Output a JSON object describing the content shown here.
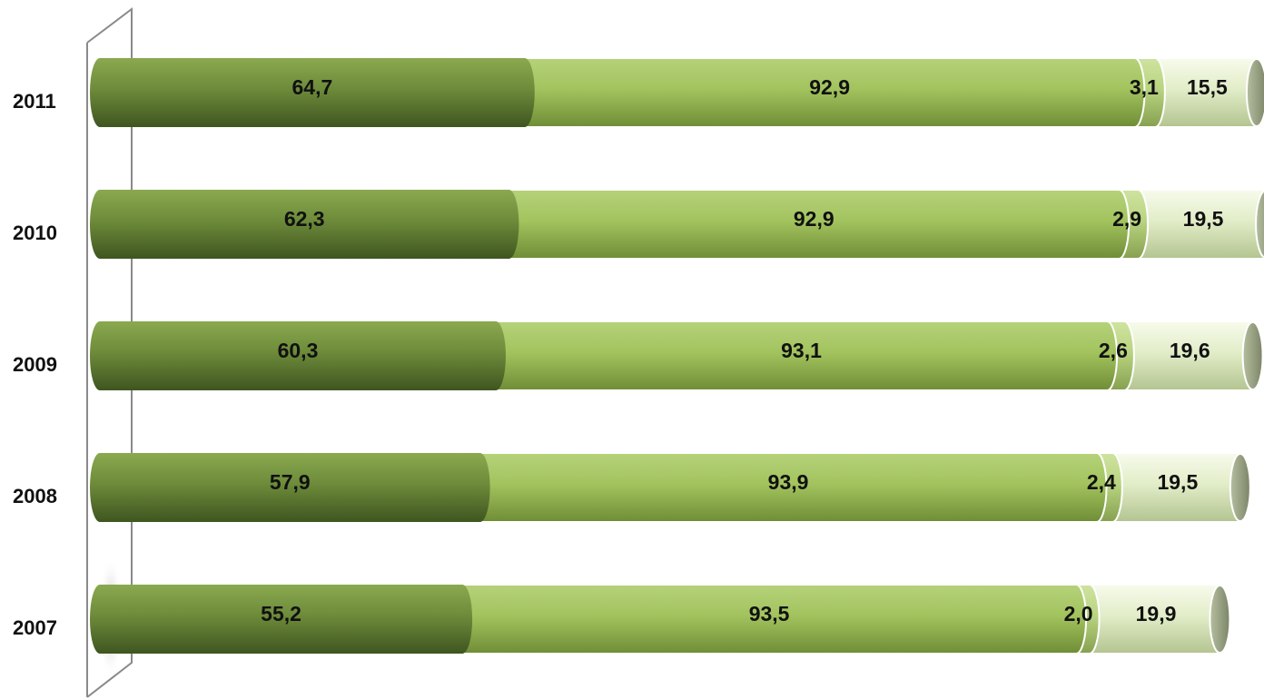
{
  "chart_data": {
    "type": "bar",
    "orientation": "horizontal",
    "stacked": true,
    "categories": [
      "2011",
      "2010",
      "2009",
      "2008",
      "2007"
    ],
    "series": [
      {
        "values": [
          "64,7",
          "62,3",
          "60,3",
          "57,9",
          "55,2"
        ],
        "numeric": [
          64.7,
          62.3,
          60.3,
          57.9,
          55.2
        ]
      },
      {
        "values": [
          "92,9",
          "92,9",
          "93,1",
          "93,9",
          "93,5"
        ],
        "numeric": [
          92.9,
          92.9,
          93.1,
          93.9,
          93.5
        ]
      },
      {
        "values": [
          "3,1",
          "2,9",
          "2,6",
          "2,4",
          "2,0"
        ],
        "numeric": [
          3.1,
          2.9,
          2.6,
          2.4,
          2.0
        ]
      },
      {
        "values": [
          "15,5",
          "19,5",
          "19,6",
          "19,5",
          "19,9"
        ],
        "numeric": [
          15.5,
          19.5,
          19.6,
          19.5,
          19.9
        ]
      }
    ],
    "colors": [
      "#6b8a3a",
      "#a3c35e",
      "#b9d480",
      "#e6f0cc"
    ],
    "title": "",
    "xlabel": "",
    "ylabel": "",
    "grid": false,
    "legend": "none"
  }
}
